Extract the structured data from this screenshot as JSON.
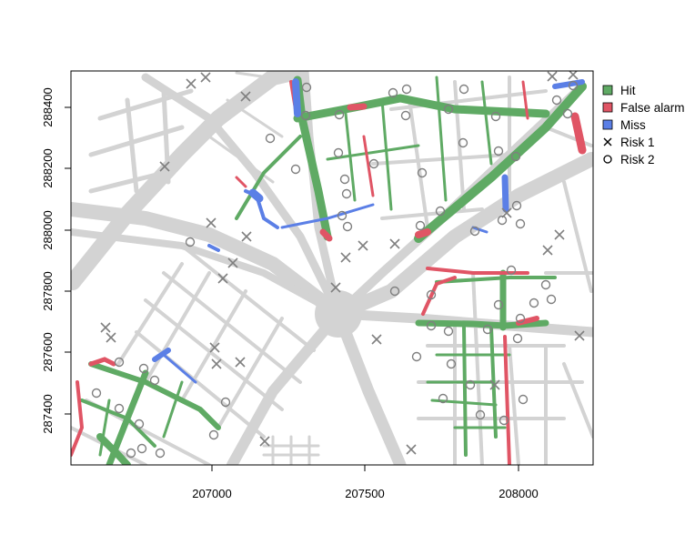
{
  "map": {
    "x_axis": {
      "ticks": [
        "207000",
        "207500",
        "208000"
      ]
    },
    "y_axis": {
      "ticks": [
        "287400",
        "287600",
        "287800",
        "288000",
        "288200",
        "288400"
      ]
    },
    "legend": {
      "items": [
        {
          "label": "Hit",
          "symbol": "fill-square",
          "color": "#5faa64"
        },
        {
          "label": "False alarm",
          "symbol": "fill-square",
          "color": "#e05565"
        },
        {
          "label": "Miss",
          "symbol": "fill-square",
          "color": "#5b7fe6"
        },
        {
          "label": "Risk 1",
          "symbol": "cross",
          "color": "#000000"
        },
        {
          "label": "Risk 2",
          "symbol": "circle",
          "color": "#000000"
        }
      ]
    },
    "colors": {
      "road": "#d3d3d3",
      "hit": "#5faa64",
      "false_alarm": "#e05565",
      "miss": "#5b7fe6",
      "marker": "#7f7f7f"
    }
  }
}
